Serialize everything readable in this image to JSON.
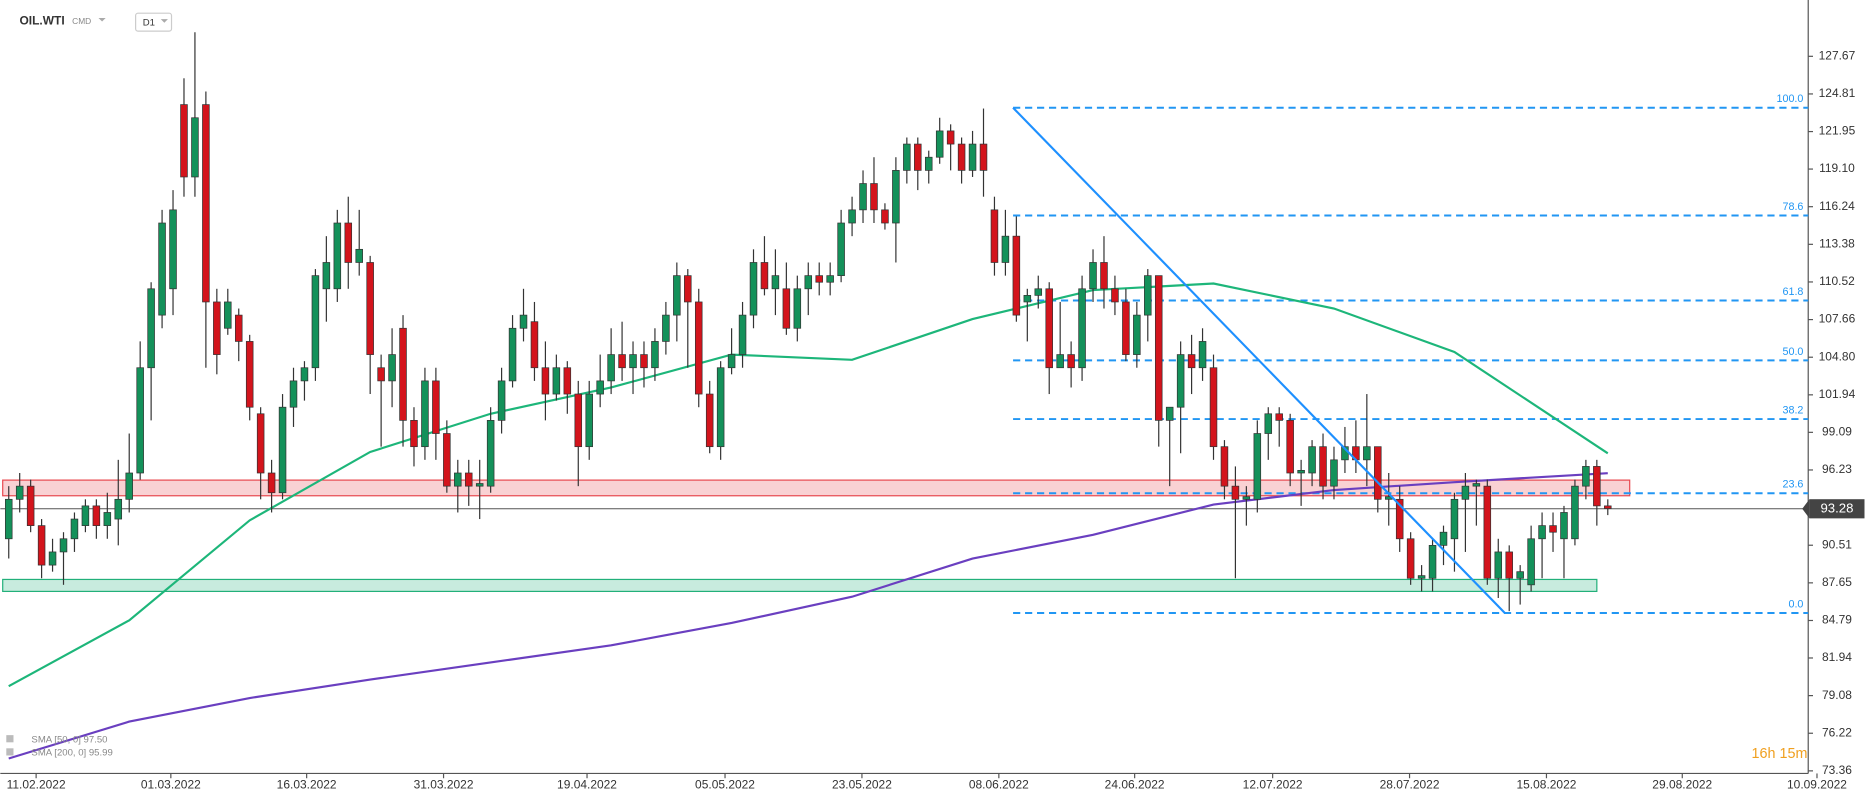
{
  "chart_data": {
    "type": "candlestick",
    "symbol": "OIL.WTI",
    "market": "CMD",
    "interval": "D1",
    "current_price": 93.28,
    "current_price_label": "93.28",
    "countdown": "16h 15m",
    "xlim": [
      -0.77,
      164.3
    ],
    "ylim": [
      72.8,
      131.95
    ],
    "yticks": [
      127.67,
      124.81,
      121.95,
      {
        "value": 119.1,
        "label": "119.10"
      },
      116.24,
      113.38,
      110.52,
      107.66,
      {
        "value": 104.8,
        "label": "104.80"
      },
      101.94,
      99.09,
      96.23,
      90.51,
      87.65,
      84.79,
      81.94,
      79.08,
      76.22,
      73.36
    ],
    "xticks": [
      {
        "value": 2.5,
        "label": "11.02.2022"
      },
      {
        "value": 14.8,
        "label": "01.03.2022"
      },
      {
        "value": 27.2,
        "label": "16.03.2022"
      },
      {
        "value": 39.7,
        "label": "31.03.2022"
      },
      {
        "value": 52.8,
        "label": "19.04.2022"
      },
      {
        "value": 65.4,
        "label": "05.05.2022"
      },
      {
        "value": 77.9,
        "label": "23.05.2022"
      },
      {
        "value": 90.4,
        "label": "08.06.2022"
      },
      {
        "value": 102.8,
        "label": "24.06.2022"
      },
      {
        "value": 115.4,
        "label": "12.07.2022"
      },
      {
        "value": 127.9,
        "label": "28.07.2022"
      },
      {
        "value": 140.4,
        "label": "15.08.2022"
      },
      {
        "value": 152.8,
        "label": "29.08.2022"
      },
      {
        "value": 165.1,
        "label": "10.09.2022"
      }
    ],
    "up_color": "#14915a",
    "down_color": "#d3141c",
    "candles": [
      [
        91,
        95,
        89.5,
        94
      ],
      [
        94,
        96,
        93,
        95
      ],
      [
        95,
        95.5,
        91.5,
        92
      ],
      [
        92,
        92.5,
        88,
        89
      ],
      [
        89,
        91,
        88.5,
        90
      ],
      [
        90,
        91.5,
        87.5,
        91
      ],
      [
        91,
        93,
        90,
        92.5
      ],
      [
        92,
        94,
        91.5,
        93.5
      ],
      [
        93.5,
        94,
        91,
        92
      ],
      [
        92,
        94.5,
        91,
        93
      ],
      [
        92.5,
        97,
        90.5,
        94
      ],
      [
        94,
        99,
        93,
        96
      ],
      [
        96,
        106,
        95.5,
        104
      ],
      [
        104,
        110.5,
        100,
        110
      ],
      [
        108,
        116,
        107,
        115
      ],
      [
        110,
        117.5,
        108,
        116
      ],
      [
        124,
        126,
        117,
        118.5
      ],
      [
        118.5,
        129.5,
        117,
        123
      ],
      [
        124,
        125,
        104,
        109
      ],
      [
        109,
        110,
        103.5,
        105
      ],
      [
        107,
        110,
        106.5,
        109
      ],
      [
        108,
        108.5,
        104.5,
        106
      ],
      [
        106,
        106.5,
        100,
        101
      ],
      [
        100.5,
        101,
        94,
        96
      ],
      [
        96,
        97,
        93,
        94.5
      ],
      [
        94.5,
        102,
        94,
        101
      ],
      [
        101,
        104,
        99.5,
        103
      ],
      [
        103,
        104.5,
        101.5,
        104
      ],
      [
        104,
        111.5,
        103,
        111
      ],
      [
        110,
        114,
        107.5,
        112
      ],
      [
        110,
        116,
        109,
        115
      ],
      [
        115,
        117,
        110,
        112
      ],
      [
        112,
        116,
        111,
        113
      ],
      [
        112,
        112.5,
        102,
        105
      ],
      [
        104,
        105,
        98,
        103
      ],
      [
        103,
        107,
        101,
        105
      ],
      [
        107,
        108,
        98,
        100
      ],
      [
        100,
        101,
        96.5,
        98
      ],
      [
        98,
        104,
        97,
        103
      ],
      [
        103,
        104,
        97,
        99
      ],
      [
        99,
        100,
        94.5,
        95
      ],
      [
        95,
        97,
        93,
        96
      ],
      [
        96,
        97,
        93.5,
        95
      ],
      [
        95,
        97,
        92.5,
        95.2
      ],
      [
        95,
        101,
        94.5,
        100
      ],
      [
        100,
        104,
        99,
        103
      ],
      [
        103,
        108,
        102.5,
        107
      ],
      [
        107,
        110,
        106,
        108
      ],
      [
        107.5,
        109,
        103,
        104
      ],
      [
        104,
        106,
        100,
        102
      ],
      [
        102,
        105,
        101.5,
        104
      ],
      [
        104,
        104.5,
        100.5,
        102
      ],
      [
        102,
        103,
        95,
        98
      ],
      [
        98,
        103,
        97,
        102
      ],
      [
        102,
        105,
        101,
        103
      ],
      [
        103,
        107,
        102,
        105
      ],
      [
        105,
        107.5,
        103,
        104
      ],
      [
        104,
        106,
        102,
        105
      ],
      [
        105,
        106,
        102.5,
        104
      ],
      [
        104,
        107,
        103,
        106
      ],
      [
        106,
        109,
        105,
        108
      ],
      [
        108,
        112,
        106,
        111
      ],
      [
        111,
        111.5,
        104,
        109
      ],
      [
        109,
        110,
        101,
        102
      ],
      [
        102,
        103,
        97.5,
        98
      ],
      [
        98,
        104.5,
        97,
        104
      ],
      [
        104,
        107,
        103.5,
        105
      ],
      [
        105,
        109,
        104,
        108
      ],
      [
        108,
        113,
        107,
        112
      ],
      [
        112,
        114,
        109.5,
        110
      ],
      [
        110,
        113,
        108,
        111
      ],
      [
        110,
        112,
        106.5,
        107
      ],
      [
        107,
        111,
        106,
        110
      ],
      [
        110,
        112,
        108,
        111
      ],
      [
        111,
        112,
        109.5,
        110.5
      ],
      [
        110.5,
        112,
        109.5,
        111
      ],
      [
        111,
        116,
        110.5,
        115
      ],
      [
        115,
        117,
        114,
        116
      ],
      [
        116,
        119,
        115,
        118
      ],
      [
        118,
        120,
        115,
        116
      ],
      [
        116,
        116.5,
        114.5,
        115
      ],
      [
        115,
        120,
        112,
        119
      ],
      [
        119,
        121.5,
        118,
        121
      ],
      [
        121,
        121.5,
        117.5,
        119
      ],
      [
        119,
        120.5,
        118,
        120
      ],
      [
        120,
        123,
        119.5,
        122
      ],
      [
        122,
        122.5,
        119,
        121
      ],
      [
        121,
        121.5,
        118,
        119
      ],
      [
        119,
        122,
        118.5,
        121
      ],
      [
        121,
        123.7,
        117,
        119
      ],
      [
        116,
        117,
        111,
        112
      ],
      [
        112,
        116,
        111,
        114
      ],
      [
        114,
        115.5,
        107.5,
        108
      ],
      [
        109,
        110,
        106,
        109.5
      ],
      [
        109.5,
        111,
        108.5,
        110
      ],
      [
        110,
        110.5,
        102,
        104
      ],
      [
        104,
        109,
        104,
        105
      ],
      [
        105,
        106,
        102.5,
        104
      ],
      [
        104,
        111,
        103,
        110
      ],
      [
        110,
        113,
        109,
        112
      ],
      [
        112,
        114,
        108.5,
        110
      ],
      [
        110,
        111,
        108,
        109
      ],
      [
        109,
        110,
        104.5,
        105
      ],
      [
        105,
        109,
        104,
        108
      ],
      [
        108,
        111.5,
        106,
        111
      ],
      [
        111,
        111,
        98,
        100
      ],
      [
        100,
        101,
        95,
        101
      ],
      [
        101,
        106,
        97.5,
        105
      ],
      [
        105,
        106.5,
        102,
        104
      ],
      [
        104,
        107,
        103,
        106
      ],
      [
        104,
        105,
        97,
        98
      ],
      [
        98,
        98.5,
        94,
        95
      ],
      [
        95,
        96.5,
        88,
        94
      ],
      [
        94,
        95,
        92,
        94.2
      ],
      [
        94,
        100,
        93,
        99
      ],
      [
        99,
        101,
        97,
        100.5
      ],
      [
        100.5,
        101,
        98,
        100
      ],
      [
        100,
        100.5,
        95,
        96
      ],
      [
        96,
        97,
        93.5,
        96.2
      ],
      [
        96,
        98.5,
        95,
        98
      ],
      [
        98,
        99,
        94,
        95
      ],
      [
        95,
        98,
        94,
        97
      ],
      [
        97,
        99.5,
        96,
        98
      ],
      [
        98,
        100,
        96,
        97
      ],
      [
        97,
        102,
        95,
        98
      ],
      [
        98,
        98,
        93,
        94
      ],
      [
        94,
        96,
        92,
        94.2
      ],
      [
        94,
        95,
        90,
        91
      ],
      [
        91,
        91.5,
        87.5,
        88
      ],
      [
        88,
        89,
        87,
        88.2
      ],
      [
        88,
        91,
        87,
        90.5
      ],
      [
        90.5,
        92,
        89,
        91.5
      ],
      [
        91,
        94.5,
        88.5,
        94
      ],
      [
        94,
        96,
        90,
        95
      ],
      [
        95,
        95.5,
        92,
        95.2
      ],
      [
        95,
        95.5,
        87.5,
        88
      ],
      [
        88,
        91,
        86.5,
        90
      ],
      [
        90,
        90.5,
        85.5,
        88
      ],
      [
        88,
        89,
        86,
        88.5
      ],
      [
        87.5,
        92,
        87,
        91
      ],
      [
        91,
        93,
        88,
        92
      ],
      [
        92,
        93,
        90,
        91.5
      ],
      [
        91,
        93.5,
        88,
        93
      ],
      [
        91,
        95.5,
        90.5,
        95
      ],
      [
        95,
        97,
        94,
        96.5
      ],
      [
        96.5,
        97,
        92,
        93.5
      ],
      [
        93.5,
        94,
        92.8,
        93.3
      ]
    ],
    "series": [
      {
        "name": "SMA [50, 0] 97.50",
        "color": "#1db67a",
        "x": [
          0,
          11,
          22,
          33,
          44,
          55,
          66,
          77,
          88,
          99,
          110,
          121,
          132,
          146
        ],
        "values": [
          79.8,
          84.8,
          92.4,
          97.6,
          100.5,
          102.5,
          105.0,
          104.6,
          107.7,
          109.9,
          110.4,
          108.5,
          105.2,
          97.5
        ]
      },
      {
        "name": "SMA [200, 0] 95.99",
        "color": "#6a3fc0",
        "x": [
          0,
          11,
          22,
          33,
          44,
          55,
          66,
          77,
          88,
          99,
          110,
          121,
          132,
          146
        ],
        "values": [
          74.3,
          77.1,
          78.9,
          80.3,
          81.6,
          82.9,
          84.6,
          86.6,
          89.5,
          91.3,
          93.6,
          94.7,
          95.3,
          95.99
        ]
      }
    ],
    "fib_start": 91.7,
    "fib_color": "#2196f3",
    "fib_levels": [
      {
        "label": "100.0",
        "price": 123.76
      },
      {
        "label": "78.6",
        "price": 115.57
      },
      {
        "label": "61.8",
        "price": 109.11
      },
      {
        "label": "50.0",
        "price": 104.56
      },
      {
        "label": "38.2",
        "price": 100.1
      },
      {
        "label": "23.6",
        "price": 94.46
      },
      {
        "label": "0.0",
        "price": 85.36
      }
    ],
    "trendline": {
      "x": [
        91.7,
        136.6
      ],
      "y": [
        123.76,
        85.36
      ],
      "color": "#1e90ff"
    },
    "zones": [
      {
        "low": 94.27,
        "high": 95.46,
        "end": 148,
        "color": "#e8484f"
      },
      {
        "low": 87.0,
        "high": 87.91,
        "end": 145,
        "color": "#22b07a"
      }
    ]
  }
}
